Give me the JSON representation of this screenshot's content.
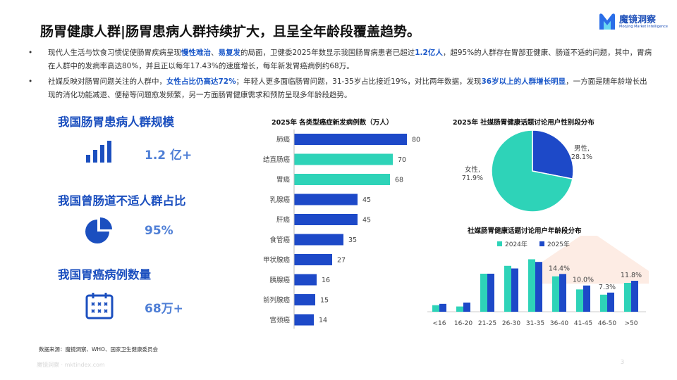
{
  "title": "肠胃健康人群|肠胃患病人群持续扩大，且呈全年龄段覆盖趋势。",
  "brand": {
    "name": "魔镜洞察",
    "tagline": "Moojing Market Intelligence"
  },
  "bullets": [
    [
      {
        "t": "现代人生活与饮食习惯促使肠胃疾病呈现",
        "hl": false
      },
      {
        "t": "慢性难治",
        "hl": true
      },
      {
        "t": "、",
        "hl": false
      },
      {
        "t": "易复发",
        "hl": true
      },
      {
        "t": "的局面，卫健委2025年数显示我国肠胃病患者已超过",
        "hl": false
      },
      {
        "t": "1.2亿人",
        "hl": true
      },
      {
        "t": "，超95%的人群存在胃部亚健康、肠道不适的问题，其中，胃病在人群中的发病率高达80%，并且正以每年17.43%的速度增长，每年新发胃癌病例约68万。",
        "hl": false
      }
    ],
    [
      {
        "t": "社媒反映对肠胃问题关注的人群中，",
        "hl": false
      },
      {
        "t": "女性占比仍高达72%",
        "hl": true
      },
      {
        "t": "；年轻人更多面临肠胃问题，31-35岁占比接近19%，对比两年数据，发现",
        "hl": false
      },
      {
        "t": "36岁以上的人群增长明显",
        "hl": true
      },
      {
        "t": "，一方面是随年龄增长出现的消化功能减退、便秘等问题愈发频繁，另一方面肠胃健康需求和预防呈现多年龄段趋势。",
        "hl": false
      }
    ]
  ],
  "stats": [
    {
      "heading": "我国肠胃患病人群规模",
      "value": "1.2 亿+",
      "icon": "bar-chart-icon"
    },
    {
      "heading": "我国曾肠道不适人群占比",
      "value": "95%",
      "icon": "pie-chart-icon"
    },
    {
      "heading": "我国胃癌病例数量",
      "value": "68万+",
      "icon": "calendar-icon"
    }
  ],
  "colors": {
    "blue": "#1d49c8",
    "teal": "#2ed3b8",
    "heading_blue": "#1b4fbf",
    "highlight": "#1b58c9"
  },
  "chart_data": [
    {
      "type": "bar",
      "orientation": "horizontal",
      "title": "2025年 各类型癌症新发病例数（万人）",
      "categories": [
        "肺癌",
        "结直肠癌",
        "胃癌",
        "乳腺癌",
        "肝癌",
        "食管癌",
        "甲状腺癌",
        "胰腺癌",
        "前列腺癌",
        "宫颈癌"
      ],
      "values": [
        80,
        70,
        68,
        45,
        45,
        35,
        27,
        16,
        15,
        14
      ],
      "bar_colors": [
        "#1d49c8",
        "#2ed3b8",
        "#2ed3b8",
        "#1d49c8",
        "#1d49c8",
        "#1d49c8",
        "#1d49c8",
        "#1d49c8",
        "#1d49c8",
        "#1d49c8"
      ],
      "xlim": [
        0,
        80
      ]
    },
    {
      "type": "pie",
      "title": "2025年 社媒肠胃健康话题讨论用户性别段分布",
      "slices": [
        {
          "label": "男性,",
          "pct_label": "28.1%",
          "value": 28.1,
          "color": "#1d49c8"
        },
        {
          "label": "女性,",
          "pct_label": "71.9%",
          "value": 71.9,
          "color": "#2ed3b8"
        }
      ]
    },
    {
      "type": "bar",
      "title": "社媒肠胃健康话题讨论用户年龄段分布",
      "categories": [
        "<16",
        "16-20",
        "21-25",
        "26-30",
        "31-35",
        "36-40",
        "41-45",
        "46-50",
        ">50"
      ],
      "series": [
        {
          "name": "2024年",
          "color": "#2ed3b8",
          "values": [
            2.5,
            2.0,
            14.5,
            17.5,
            20.0,
            13.5,
            8.5,
            6.5,
            11.0
          ]
        },
        {
          "name": "2025年",
          "color": "#1d49c8",
          "values": [
            3.0,
            3.5,
            14.5,
            16.5,
            19.0,
            14.4,
            10.0,
            7.3,
            11.8
          ]
        }
      ],
      "data_labels": [
        {
          "index": 5,
          "text": "14.4%"
        },
        {
          "index": 6,
          "text": "10.0%"
        },
        {
          "index": 7,
          "text": "7.3%"
        },
        {
          "index": 8,
          "text": "11.8%"
        }
      ],
      "ylim": [
        0,
        22
      ],
      "legend": "top"
    }
  ],
  "source": "数据来源：魔镜洞察、WHO、国家卫生健康委员会",
  "footer": "魔镜洞察 · mktindex.com",
  "page_number": "3"
}
